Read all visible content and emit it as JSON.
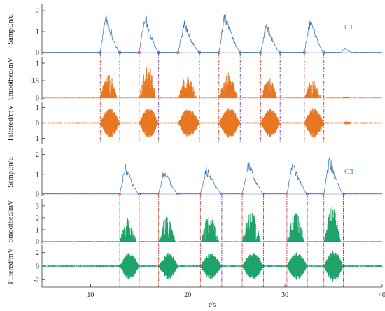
{
  "chart_data": {
    "type": "line",
    "xlabel": "t/s",
    "xlim": [
      5,
      40
    ],
    "xticks": [
      10,
      20,
      30,
      40
    ],
    "colors": {
      "C1": "#e87722",
      "C3": "#1ea36b",
      "sampen": "#2e6fb7",
      "onset": "#d9453b",
      "offset": "#7a3fb0"
    },
    "panels": [
      {
        "id": "c1-sampen",
        "ylabel": "SampEn/u",
        "ylim": [
          0,
          2.2
        ],
        "yticks": [
          0,
          1,
          2
        ],
        "channel_label": "C1",
        "kind": "sampen",
        "channel": "C1",
        "bursts": [
          {
            "start": 11.0,
            "end": 13.0,
            "peak": 1.95
          },
          {
            "start": 15.0,
            "end": 17.0,
            "peak": 1.9
          },
          {
            "start": 19.0,
            "end": 21.2,
            "peak": 1.55
          },
          {
            "start": 23.2,
            "end": 25.4,
            "peak": 1.85
          },
          {
            "start": 27.5,
            "end": 29.5,
            "peak": 1.4
          },
          {
            "start": 32.0,
            "end": 34.0,
            "peak": 1.6
          },
          {
            "start": 35.8,
            "end": 37.0,
            "peak": 0.2
          }
        ]
      },
      {
        "id": "c1-smoothed",
        "ylabel": "Smoothed/mV",
        "ylim": [
          0,
          1.1
        ],
        "yticks": [
          0,
          0.5,
          1
        ],
        "kind": "smoothed",
        "channel": "C1",
        "bursts": [
          {
            "start": 11.0,
            "end": 13.0,
            "peak": 0.75
          },
          {
            "start": 15.0,
            "end": 17.0,
            "peak": 1.05
          },
          {
            "start": 19.0,
            "end": 21.2,
            "peak": 0.65
          },
          {
            "start": 23.2,
            "end": 25.4,
            "peak": 0.75
          },
          {
            "start": 27.5,
            "end": 29.5,
            "peak": 0.6
          },
          {
            "start": 32.0,
            "end": 34.0,
            "peak": 0.55
          },
          {
            "start": 35.8,
            "end": 37.0,
            "peak": 0.05
          }
        ]
      },
      {
        "id": "c1-filtered",
        "ylabel": "Filtered/mV",
        "ylim": [
          -1.2,
          1.2
        ],
        "yticks": [
          -1,
          0,
          1
        ],
        "kind": "filtered",
        "channel": "C1",
        "bursts": [
          {
            "start": 11.0,
            "end": 13.0,
            "peak": 1.0
          },
          {
            "start": 15.0,
            "end": 17.0,
            "peak": 1.0
          },
          {
            "start": 19.0,
            "end": 21.2,
            "peak": 0.95
          },
          {
            "start": 23.2,
            "end": 25.4,
            "peak": 1.0
          },
          {
            "start": 27.5,
            "end": 29.5,
            "peak": 0.95
          },
          {
            "start": 32.0,
            "end": 34.0,
            "peak": 1.0
          },
          {
            "start": 35.8,
            "end": 37.0,
            "peak": 0.1
          }
        ]
      },
      {
        "id": "c3-sampen",
        "ylabel": "SampEn/u",
        "ylim": [
          0,
          2.2
        ],
        "yticks": [
          0,
          1,
          2
        ],
        "channel_label": "C3",
        "kind": "sampen",
        "channel": "C3",
        "bursts": [
          {
            "start": 13.0,
            "end": 15.0,
            "peak": 1.45
          },
          {
            "start": 17.0,
            "end": 19.0,
            "peak": 1.3
          },
          {
            "start": 21.3,
            "end": 23.5,
            "peak": 1.35
          },
          {
            "start": 25.6,
            "end": 27.8,
            "peak": 1.7
          },
          {
            "start": 30.2,
            "end": 32.3,
            "peak": 1.6
          },
          {
            "start": 34.0,
            "end": 36.0,
            "peak": 1.9
          }
        ]
      },
      {
        "id": "c3-smoothed",
        "ylabel": "Smoothed/mV",
        "ylim": [
          0,
          3.4
        ],
        "yticks": [
          0,
          1,
          2,
          3
        ],
        "kind": "smoothed",
        "channel": "C3",
        "bursts": [
          {
            "start": 13.0,
            "end": 15.0,
            "peak": 2.0
          },
          {
            "start": 17.0,
            "end": 19.0,
            "peak": 2.2
          },
          {
            "start": 21.3,
            "end": 23.5,
            "peak": 2.3
          },
          {
            "start": 25.6,
            "end": 27.8,
            "peak": 2.5
          },
          {
            "start": 30.2,
            "end": 32.3,
            "peak": 2.6
          },
          {
            "start": 34.0,
            "end": 36.0,
            "peak": 3.0
          }
        ]
      },
      {
        "id": "c3-filtered",
        "ylabel": "Filtered/mV",
        "ylim": [
          -2.8,
          2.8
        ],
        "yticks": [
          -2,
          0,
          2
        ],
        "kind": "filtered",
        "channel": "C3",
        "bursts": [
          {
            "start": 13.0,
            "end": 15.0,
            "peak": 2.0
          },
          {
            "start": 17.0,
            "end": 19.0,
            "peak": 2.0
          },
          {
            "start": 21.3,
            "end": 23.5,
            "peak": 1.9
          },
          {
            "start": 25.6,
            "end": 27.8,
            "peak": 2.0
          },
          {
            "start": 30.2,
            "end": 32.3,
            "peak": 2.1
          },
          {
            "start": 34.0,
            "end": 36.0,
            "peak": 2.3
          }
        ]
      }
    ],
    "markers": {
      "C1": {
        "onsets": [
          11.0,
          15.0,
          19.0,
          23.2,
          27.5,
          32.0
        ],
        "offsets": [
          13.0,
          17.0,
          21.2,
          25.4,
          29.5,
          34.0
        ]
      },
      "C3": {
        "onsets": [
          13.0,
          17.0,
          21.3,
          25.6,
          30.2,
          34.0
        ],
        "offsets": [
          15.0,
          19.0,
          23.5,
          27.8,
          32.3,
          36.0
        ]
      }
    }
  }
}
